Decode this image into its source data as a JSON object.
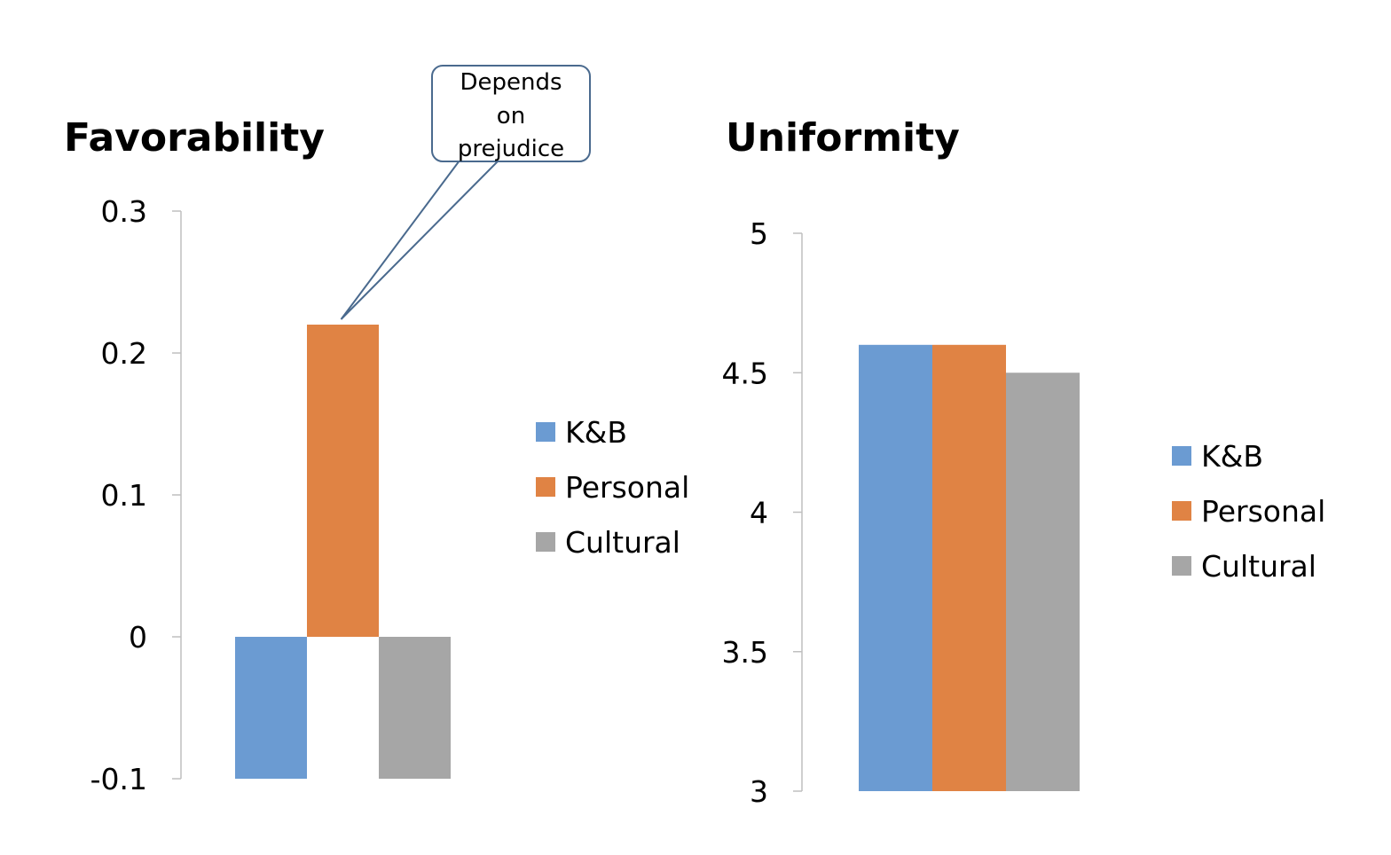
{
  "chart_data": [
    {
      "type": "bar",
      "title": "Favorability",
      "categories": [
        ""
      ],
      "series": [
        {
          "name": "K&B",
          "values": [
            -0.1
          ]
        },
        {
          "name": "Personal",
          "values": [
            0.22
          ]
        },
        {
          "name": "Cultural",
          "values": [
            -0.1
          ]
        }
      ],
      "ylim": [
        -0.1,
        0.3
      ],
      "yticks": [
        "0.3",
        "0.2",
        "0.1",
        "0",
        "-0.1"
      ],
      "xlabel": "",
      "ylabel": "",
      "legend": "right",
      "grid": false,
      "annotation": {
        "text_lines": [
          "Depends",
          "on",
          "prejudice"
        ],
        "target_series": "Personal"
      }
    },
    {
      "type": "bar",
      "title": "Uniformity",
      "categories": [
        ""
      ],
      "series": [
        {
          "name": "K&B",
          "values": [
            4.6
          ]
        },
        {
          "name": "Personal",
          "values": [
            4.6
          ]
        },
        {
          "name": "Cultural",
          "values": [
            4.5
          ]
        }
      ],
      "ylim": [
        3,
        5
      ],
      "yticks": [
        "5",
        "4.5",
        "4",
        "3.5",
        "3"
      ],
      "xlabel": "",
      "ylabel": "",
      "legend": "right",
      "grid": false
    }
  ],
  "colors": {
    "K&B": "#6b9bd2",
    "Personal": "#e08344",
    "Cultural": "#a6a6a6",
    "axis": "#bfbfbf",
    "text": "#000000",
    "callout_border": "#4a6a8e"
  }
}
